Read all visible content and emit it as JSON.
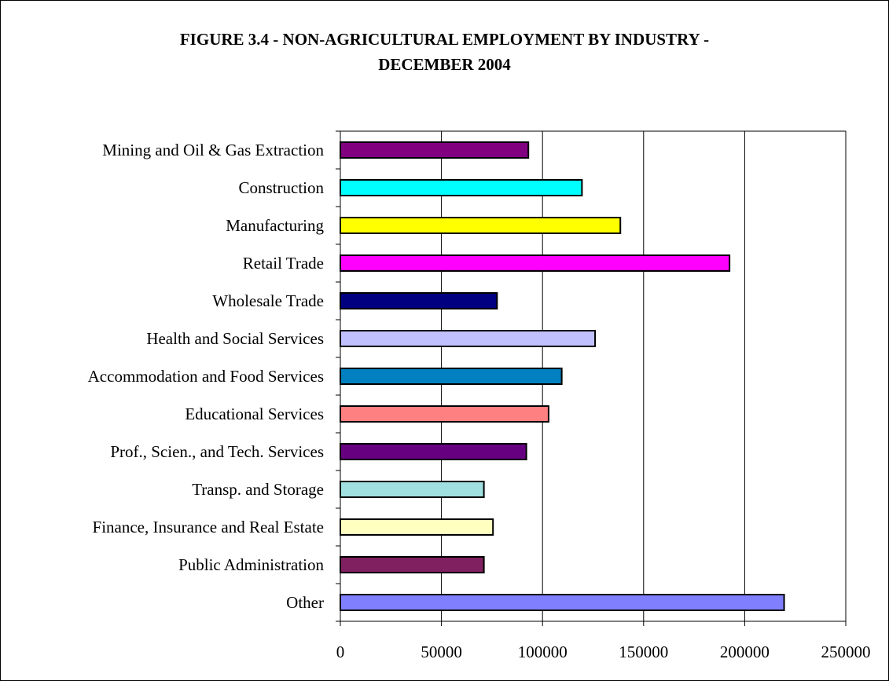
{
  "chart_data": {
    "type": "bar",
    "orientation": "horizontal",
    "title_lines": [
      "FIGURE 3.4 - NON-AGRICULTURAL EMPLOYMENT BY INDUSTRY -",
      "DECEMBER 2004"
    ],
    "categories": [
      "Mining and Oil & Gas Extraction",
      "Construction",
      "Manufacturing",
      "Retail Trade",
      "Wholesale Trade",
      "Health and Social Services",
      "Accommodation and Food Services",
      "Educational Services",
      "Prof., Scien., and Tech. Services",
      "Transp. and Storage",
      "Finance, Insurance and Real Estate",
      "Public Administration",
      "Other"
    ],
    "values": [
      93000,
      119500,
      138500,
      192500,
      77500,
      126000,
      109500,
      103000,
      92000,
      71000,
      75500,
      71000,
      219500
    ],
    "colors": [
      "#800080",
      "#00FFFF",
      "#FFFF00",
      "#FF00FF",
      "#000080",
      "#C0C0FF",
      "#0080C0",
      "#FF8080",
      "#660080",
      "#A0E0E0",
      "#FFFFC0",
      "#802060",
      "#8080FF"
    ],
    "xlim": [
      0,
      250000
    ],
    "x_ticks": [
      "0",
      "50000",
      "100000",
      "150000",
      "200000",
      "250000"
    ],
    "grid": "vertical",
    "legend": "none"
  }
}
